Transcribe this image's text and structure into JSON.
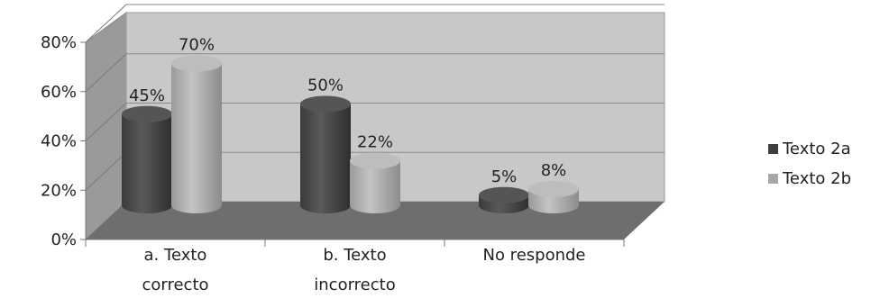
{
  "chart_data": {
    "type": "bar",
    "style": "3d-cylinder",
    "categories": [
      "a. Texto correcto",
      "b. Texto incorrecto",
      "No responde"
    ],
    "category_lines": [
      [
        "a. Texto",
        "correcto"
      ],
      [
        "b. Texto",
        "incorrecto"
      ],
      [
        "No responde"
      ]
    ],
    "series": [
      {
        "name": "Texto 2a",
        "values": [
          45,
          50,
          5
        ],
        "labels": [
          "45%",
          "50%",
          "5%"
        ],
        "color": "#4a4a4a"
      },
      {
        "name": "Texto 2b",
        "values": [
          70,
          22,
          8
        ],
        "labels": [
          "70%",
          "22%",
          "8%"
        ],
        "color": "#a8a8a8"
      }
    ],
    "ylim": [
      0,
      80
    ],
    "yticks": [
      0,
      20,
      40,
      60,
      80
    ],
    "ytick_labels": [
      "0%",
      "20%",
      "40%",
      "60%",
      "80%"
    ],
    "grid": true,
    "legend_position": "right",
    "wall_color": "#c8c8c8",
    "floor_color": "#6e6e6e"
  }
}
